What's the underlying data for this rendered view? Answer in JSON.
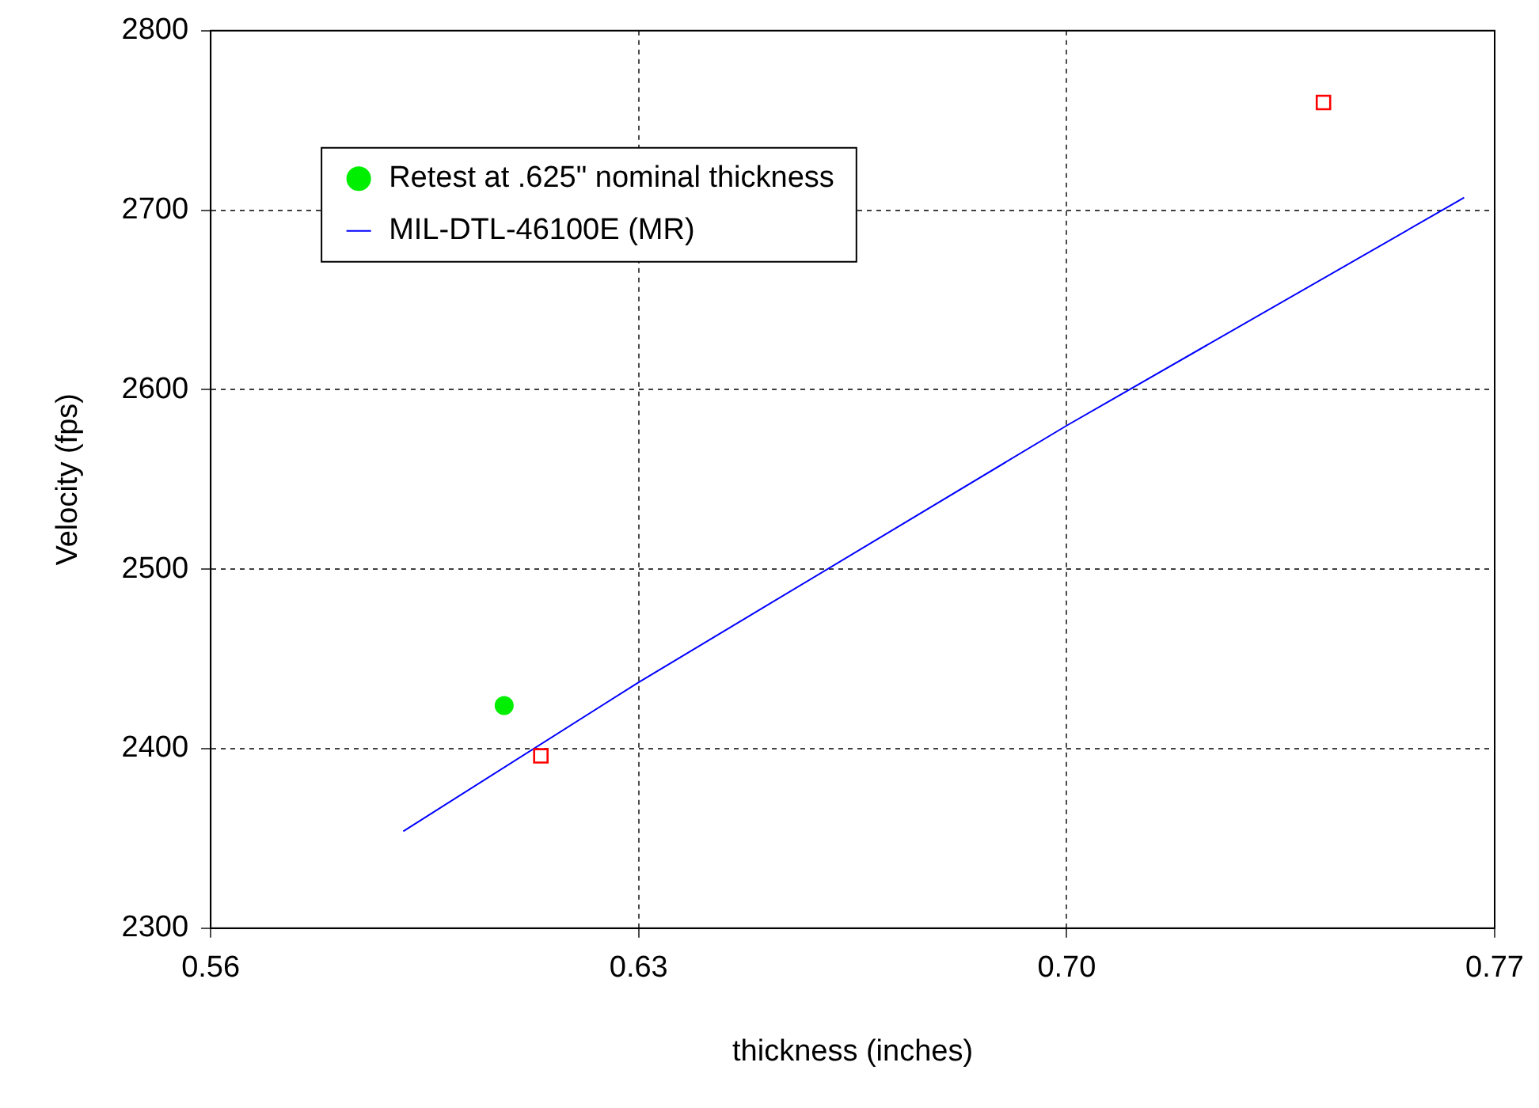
{
  "chart_data": {
    "type": "scatter",
    "xlabel": "thickness (inches)",
    "ylabel": "Velocity (fps)",
    "series": [
      {
        "type": "scatter",
        "color": "#ff0000",
        "marker": "square",
        "x": [
          0.614,
          0.742
        ],
        "values": [
          2396,
          2760
        ]
      },
      {
        "type": "scatter",
        "name": "Retest at .625\" nominal thickness",
        "color": "#00ee00",
        "marker": "circle",
        "x": [
          0.608
        ],
        "values": [
          2424
        ]
      },
      {
        "type": "line",
        "name": "MIL-DTL-46100E (MR)",
        "color": "#0000ff",
        "marker": "none",
        "x": [
          0.5915,
          0.63,
          0.7,
          0.765
        ],
        "values": [
          2354,
          2437,
          2580,
          2707
        ]
      }
    ],
    "xlim": [
      0.56,
      0.77
    ],
    "xticks": [
      {
        "value": 0.56,
        "label": "0.56"
      },
      {
        "value": 0.63,
        "label": "0.63"
      },
      {
        "value": 0.7,
        "label": "0.70"
      },
      {
        "value": 0.77,
        "label": "0.77"
      }
    ],
    "ylim": [
      2300,
      2800
    ],
    "yticks": [
      2300,
      2400,
      2500,
      2600,
      2700,
      2800
    ],
    "grid": true,
    "legend": "top left"
  }
}
